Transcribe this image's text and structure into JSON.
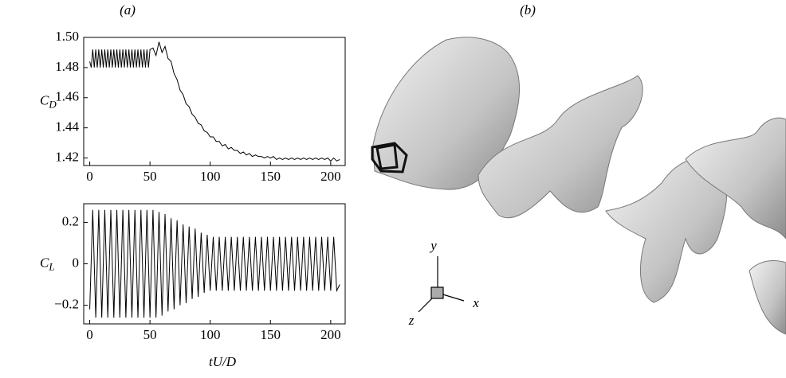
{
  "chart_data": [
    {
      "type": "line",
      "panel": "(a)",
      "ylabel": "C",
      "ylabel_sub": "D",
      "xlim": [
        -5,
        212
      ],
      "xticks": [
        0,
        50,
        100,
        150,
        200
      ],
      "ylim": [
        1.415,
        1.5
      ],
      "yticks": [
        1.42,
        1.44,
        1.46,
        1.48,
        {
          "value": 1.5,
          "label": "1.50"
        }
      ],
      "series": [
        {
          "color": "#000000",
          "x": [
            0,
            1.25,
            2.5,
            3.75,
            5,
            6.25,
            7.5,
            8.75,
            10,
            11.25,
            12.5,
            13.75,
            15,
            16.25,
            17.5,
            18.75,
            20,
            21.25,
            22.5,
            23.75,
            25,
            26.25,
            27.5,
            28.75,
            30,
            31.25,
            32.5,
            33.75,
            35,
            36.25,
            37.5,
            38.75,
            40,
            41.25,
            42.5,
            43.75,
            45,
            46.25,
            47.5,
            48.75,
            50,
            52.5,
            55,
            57.5,
            60,
            62.5,
            65,
            67.5,
            70,
            72.5,
            75,
            77.5,
            80,
            82.5,
            85,
            87.5,
            90,
            92.5,
            95,
            97.5,
            100,
            102.5,
            105,
            107.5,
            110,
            112.5,
            115,
            117.5,
            120,
            122.5,
            125,
            127.5,
            130,
            132.5,
            135,
            137.5,
            140,
            142.5,
            145,
            147.5,
            150,
            152.5,
            155,
            157.5,
            160,
            162.5,
            165,
            167.5,
            170,
            172.5,
            175,
            177.5,
            180,
            182.5,
            185,
            187.5,
            190,
            192.5,
            195,
            197.5,
            200,
            202.5,
            205,
            207.5
          ],
          "values": [
            1.484,
            1.48,
            1.492,
            1.48,
            1.492,
            1.48,
            1.492,
            1.48,
            1.492,
            1.48,
            1.492,
            1.48,
            1.492,
            1.48,
            1.492,
            1.48,
            1.492,
            1.48,
            1.492,
            1.48,
            1.492,
            1.48,
            1.492,
            1.48,
            1.492,
            1.48,
            1.492,
            1.48,
            1.492,
            1.48,
            1.492,
            1.48,
            1.492,
            1.48,
            1.492,
            1.48,
            1.492,
            1.48,
            1.492,
            1.48,
            1.492,
            1.493,
            1.488,
            1.497,
            1.49,
            1.494,
            1.486,
            1.484,
            1.476,
            1.472,
            1.465,
            1.462,
            1.456,
            1.454,
            1.449,
            1.447,
            1.443,
            1.442,
            1.438,
            1.437,
            1.434,
            1.434,
            1.431,
            1.431,
            1.428,
            1.429,
            1.426,
            1.427,
            1.425,
            1.425,
            1.423,
            1.424,
            1.422,
            1.423,
            1.421,
            1.422,
            1.421,
            1.421,
            1.42,
            1.421,
            1.42,
            1.421,
            1.419,
            1.42,
            1.419,
            1.42,
            1.419,
            1.42,
            1.419,
            1.42,
            1.419,
            1.42,
            1.419,
            1.42,
            1.419,
            1.42,
            1.419,
            1.42,
            1.419,
            1.42,
            1.418,
            1.42,
            1.418,
            1.419
          ]
        }
      ]
    },
    {
      "type": "line",
      "ylabel": "C",
      "ylabel_sub": "L",
      "xlabel": "tU/D",
      "xlim": [
        -5,
        212
      ],
      "xticks": [
        0,
        50,
        100,
        150,
        200
      ],
      "ylim": [
        -0.29,
        0.29
      ],
      "yticks": [
        {
          "value": -0.2,
          "label": "−0.2"
        },
        0,
        0.2
      ],
      "series": [
        {
          "color": "#000000",
          "x": [
            0,
            2.5,
            5,
            7.5,
            10,
            12.5,
            15,
            17.5,
            20,
            22.5,
            25,
            27.5,
            30,
            32.5,
            35,
            37.5,
            40,
            42.5,
            45,
            47.5,
            50,
            52.5,
            55,
            57.5,
            60,
            62.5,
            65,
            67.5,
            70,
            72.5,
            75,
            77.5,
            80,
            82.5,
            85,
            87.5,
            90,
            92.5,
            95,
            97.5,
            100,
            102.5,
            105,
            107.5,
            110,
            112.5,
            115,
            117.5,
            120,
            122.5,
            125,
            127.5,
            130,
            132.5,
            135,
            137.5,
            140,
            142.5,
            145,
            147.5,
            150,
            152.5,
            155,
            157.5,
            160,
            162.5,
            165,
            167.5,
            170,
            172.5,
            175,
            177.5,
            180,
            182.5,
            185,
            187.5,
            190,
            192.5,
            195,
            197.5,
            200,
            202.5,
            205,
            207.5
          ],
          "values": [
            -0.22,
            0.26,
            -0.26,
            0.26,
            -0.26,
            0.26,
            -0.26,
            0.26,
            -0.26,
            0.26,
            -0.26,
            0.26,
            -0.26,
            0.26,
            -0.26,
            0.26,
            -0.26,
            0.26,
            -0.26,
            0.26,
            -0.26,
            0.26,
            -0.26,
            0.25,
            -0.25,
            0.24,
            -0.23,
            0.22,
            -0.22,
            0.21,
            -0.2,
            0.19,
            -0.19,
            0.18,
            -0.17,
            0.17,
            -0.16,
            0.15,
            -0.14,
            0.14,
            -0.13,
            0.13,
            -0.13,
            0.13,
            -0.13,
            0.13,
            -0.13,
            0.13,
            -0.13,
            0.13,
            -0.13,
            0.13,
            -0.13,
            0.13,
            -0.13,
            0.13,
            -0.13,
            0.13,
            -0.13,
            0.13,
            -0.13,
            0.13,
            -0.13,
            0.13,
            -0.13,
            0.13,
            -0.13,
            0.13,
            -0.13,
            0.13,
            -0.13,
            0.13,
            -0.13,
            0.13,
            -0.13,
            0.13,
            -0.13,
            0.13,
            -0.13,
            0.13,
            -0.13,
            0.13,
            -0.13,
            -0.1
          ]
        }
      ]
    }
  ],
  "figure_b": {
    "panel": "(b)",
    "axis_x": "x",
    "axis_y": "y",
    "axis_z": "z"
  }
}
